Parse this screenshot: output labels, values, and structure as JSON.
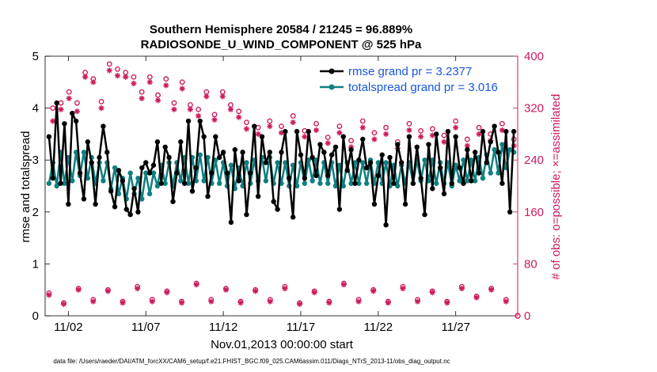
{
  "chart_data": {
    "type": "line",
    "title_line1": "Southern Hemisphere 20584 / 21245 = 96.889%",
    "title_line2": "RADIOSONDE_U_WIND_COMPONENT @ 525 hPa",
    "xlabel": "Nov.01,2013 00:00:00 start",
    "ylabel_left": "rmse and totalspread",
    "ylabel_right": "# of obs: o=possible; ×=assimilated",
    "xlim": [
      0.5,
      31.0
    ],
    "ylim_left": [
      0,
      5
    ],
    "ylim_right": [
      0,
      400
    ],
    "x_ticks": [
      2,
      7,
      12,
      17,
      22,
      27
    ],
    "x_tick_labels": [
      "11/02",
      "11/07",
      "11/12",
      "11/17",
      "11/22",
      "11/27"
    ],
    "y_ticks_left": [
      0,
      1,
      2,
      3,
      4,
      5
    ],
    "y_ticks_right": [
      0,
      80,
      160,
      240,
      320,
      400
    ],
    "legend": {
      "rmse": "rmse grand pr = 3.2377",
      "spread": "totalspread grand pr = 3.016"
    },
    "colors": {
      "rmse": "#000000",
      "spread": "#0f8080",
      "obs": "#cc1a5e",
      "right_axis": "#cc1a5e",
      "legend_text": "#1a56db"
    },
    "x": [
      0.75,
      1.0,
      1.25,
      1.5,
      1.75,
      2.0,
      2.25,
      2.5,
      2.75,
      3.0,
      3.25,
      3.5,
      3.75,
      4.0,
      4.25,
      4.5,
      4.75,
      5.0,
      5.25,
      5.5,
      5.75,
      6.0,
      6.25,
      6.5,
      6.75,
      7.0,
      7.25,
      7.5,
      7.75,
      8.0,
      8.25,
      8.5,
      8.75,
      9.0,
      9.25,
      9.5,
      9.75,
      10.0,
      10.25,
      10.5,
      10.75,
      11.0,
      11.25,
      11.5,
      11.75,
      12.0,
      12.25,
      12.5,
      12.75,
      13.0,
      13.25,
      13.5,
      13.75,
      14.0,
      14.25,
      14.5,
      14.75,
      15.0,
      15.25,
      15.5,
      15.75,
      16.0,
      16.25,
      16.5,
      16.75,
      17.0,
      17.25,
      17.5,
      17.75,
      18.0,
      18.25,
      18.5,
      18.75,
      19.0,
      19.25,
      19.5,
      19.75,
      20.0,
      20.25,
      20.5,
      20.75,
      21.0,
      21.25,
      21.5,
      21.75,
      22.0,
      22.25,
      22.5,
      22.75,
      23.0,
      23.25,
      23.5,
      23.75,
      24.0,
      24.25,
      24.5,
      24.75,
      25.0,
      25.25,
      25.5,
      25.75,
      26.0,
      26.25,
      26.5,
      26.75,
      27.0,
      27.25,
      27.5,
      27.75,
      28.0,
      28.25,
      28.5,
      28.75,
      29.0,
      29.25,
      29.5,
      29.75,
      30.0,
      30.25,
      30.5,
      30.75
    ],
    "rmse": [
      3.45,
      2.65,
      4.1,
      2.55,
      3.7,
      2.15,
      3.9,
      3.75,
      2.75,
      2.25,
      3.35,
      2.95,
      2.15,
      3.05,
      3.65,
      3.15,
      2.4,
      2.1,
      2.8,
      2.6,
      2.05,
      1.95,
      2.45,
      2.0,
      2.85,
      2.95,
      2.75,
      2.9,
      3.35,
      2.55,
      3.25,
      3.05,
      2.2,
      2.75,
      3.35,
      2.55,
      3.75,
      2.4,
      2.85,
      3.75,
      3.45,
      2.3,
      2.75,
      3.45,
      3.05,
      3.15,
      2.75,
      1.8,
      3.2,
      2.6,
      3.15,
      1.95,
      2.75,
      3.65,
      2.3,
      3.45,
      2.95,
      3.15,
      2.2,
      2.05,
      3.15,
      3.55,
      2.65,
      1.9,
      3.55,
      3.1,
      2.65,
      3.55,
      3.05,
      2.7,
      3.3,
      3.15,
      2.7,
      3.1,
      3.25,
      2.05,
      3.45,
      2.8,
      3.2,
      2.55,
      3.0,
      3.4,
      2.85,
      2.95,
      2.15,
      2.7,
      3.1,
      1.75,
      3.05,
      2.55,
      3.3,
      2.95,
      2.15,
      3.45,
      2.55,
      3.25,
      2.65,
      1.95,
      3.3,
      2.45,
      3.5,
      2.85,
      2.35,
      3.55,
      2.55,
      3.45,
      2.85,
      2.55,
      3.2,
      2.6,
      3.15,
      2.75,
      3.55,
      2.95,
      3.35,
      3.65,
      3.15,
      2.55,
      3.55,
      2.0,
      3.55
    ],
    "spread": [
      2.55,
      2.95,
      2.5,
      3.15,
      2.55,
      3.05,
      2.6,
      3.15,
      2.7,
      3.15,
      2.65,
      3.05,
      2.55,
      2.95,
      2.6,
      2.95,
      2.45,
      2.85,
      2.35,
      2.65,
      2.25,
      2.75,
      2.35,
      2.65,
      2.25,
      2.75,
      2.35,
      2.75,
      2.5,
      2.9,
      2.55,
      2.95,
      2.5,
      2.95,
      2.6,
      3.05,
      2.55,
      3.05,
      2.6,
      3.1,
      2.6,
      3.05,
      2.55,
      3.0,
      2.55,
      2.95,
      2.5,
      2.9,
      2.45,
      2.85,
      2.5,
      2.95,
      2.55,
      3.0,
      2.6,
      3.05,
      2.6,
      3.05,
      2.55,
      2.95,
      2.55,
      2.95,
      2.5,
      2.9,
      2.5,
      2.95,
      2.55,
      3.0,
      2.6,
      3.0,
      2.55,
      2.95,
      2.55,
      2.95,
      2.5,
      2.9,
      2.5,
      2.95,
      2.55,
      2.95,
      2.55,
      2.95,
      2.55,
      3.0,
      2.55,
      2.95,
      2.55,
      2.95,
      2.5,
      2.9,
      2.5,
      2.9,
      2.55,
      2.95,
      2.55,
      3.0,
      2.6,
      3.0,
      2.6,
      3.0,
      2.55,
      2.95,
      2.55,
      2.95,
      2.5,
      2.9,
      2.6,
      3.0,
      2.6,
      3.0,
      2.6,
      3.05,
      2.65,
      3.1,
      2.75,
      3.2,
      2.75,
      3.3,
      2.85,
      3.2,
      3.15
    ],
    "obs_possible_left": [
      320,
      328,
      345,
      328,
      375,
      365,
      330,
      388,
      380,
      375,
      368,
      345,
      368,
      340,
      365,
      328,
      360,
      325,
      318,
      345,
      310,
      345,
      325,
      315
    ],
    "obs_assimilated_left": [
      300,
      318,
      335,
      315,
      368,
      360,
      320,
      378,
      370,
      368,
      358,
      335,
      360,
      332,
      355,
      318,
      350,
      318,
      308,
      338,
      302,
      338,
      318,
      306
    ],
    "obs_possible_right": [
      298,
      290,
      300,
      292,
      308,
      285,
      296,
      275,
      292,
      270,
      300,
      282,
      290,
      268,
      296,
      285,
      288,
      278,
      300,
      272,
      290,
      280,
      296,
      272
    ],
    "obs_assimilated_right": [
      288,
      280,
      292,
      282,
      298,
      276,
      286,
      266,
      282,
      260,
      290,
      272,
      280,
      258,
      286,
      276,
      278,
      268,
      290,
      262,
      280,
      270,
      286,
      262
    ],
    "obs_low_possible": [
      35,
      20,
      42,
      25,
      40,
      22,
      45,
      25,
      38,
      22,
      50,
      25,
      42,
      22,
      40,
      25,
      45,
      20,
      38,
      22,
      50,
      25,
      40,
      22,
      45,
      25,
      38,
      22,
      45,
      30,
      42,
      25
    ],
    "obs_low_assimilated": [
      32,
      18,
      40,
      22,
      38,
      20,
      42,
      22,
      36,
      20,
      48,
      22,
      40,
      20,
      38,
      22,
      42,
      18,
      36,
      20,
      48,
      22,
      38,
      20,
      42,
      22,
      36,
      20,
      42,
      28,
      40,
      22
    ],
    "footnote": "data file: /Users/raeder/DAI/ATM_forcXX/CAM6_setup/f.e21.FHIST_BGC.f09_025.CAM6assim.011/Diags_NTrS_2013-11/obs_diag_output.nc"
  }
}
